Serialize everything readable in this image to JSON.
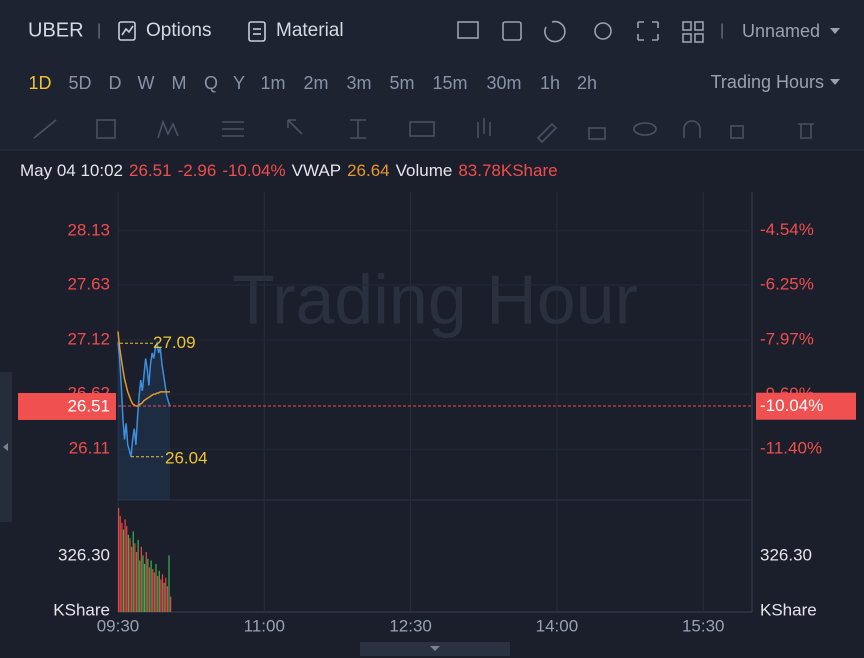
{
  "toolbar": {
    "symbol": "UBER",
    "separator": "|",
    "options": "Options",
    "material": "Material",
    "separator2": "|",
    "layout": "Unnamed"
  },
  "timeframes": [
    "1D",
    "5D",
    "D",
    "W",
    "M",
    "Q",
    "Y",
    "1m",
    "2m",
    "3m",
    "5m",
    "15m",
    "30m",
    "1h",
    "2h"
  ],
  "active_timeframe": "1D",
  "session": "Trading Hours",
  "info": {
    "time": "May 04 10:02",
    "price": "26.51",
    "change": "-2.96",
    "change_pct": "-10.04%",
    "vwap_label": "VWAP",
    "vwap": "26.64",
    "volume_label": "Volume",
    "volume": "83.78KShare"
  },
  "chart_data": {
    "type": "line",
    "watermark": "Trading Hour",
    "x": [
      "09:30",
      "09:31",
      "09:32",
      "09:33",
      "09:34",
      "09:35",
      "09:36",
      "09:37",
      "09:38",
      "09:39",
      "09:40",
      "09:41",
      "09:42",
      "09:43",
      "09:44",
      "09:45",
      "09:46",
      "09:47",
      "09:48",
      "09:49",
      "09:50",
      "09:51",
      "09:52",
      "09:53",
      "09:54",
      "09:55",
      "09:56",
      "09:57",
      "09:58",
      "09:59",
      "10:00",
      "10:01",
      "10:02"
    ],
    "xlim": [
      "09:30",
      "16:00"
    ],
    "xticks": [
      "09:30",
      "11:00",
      "12:30",
      "14:00",
      "15:30"
    ],
    "series": [
      {
        "color": "#3d8fe0",
        "values": [
          27.1,
          26.95,
          26.7,
          26.4,
          26.2,
          26.35,
          26.15,
          26.1,
          26.04,
          26.2,
          26.3,
          26.15,
          26.4,
          26.6,
          26.75,
          26.65,
          26.8,
          26.95,
          26.85,
          26.7,
          26.9,
          27.0,
          26.95,
          27.05,
          27.09,
          27.0,
          27.05,
          26.9,
          26.8,
          26.7,
          26.6,
          26.55,
          26.51
        ]
      },
      {
        "name": "VWAP",
        "color": "#e8962e",
        "values": [
          27.2,
          27.05,
          26.95,
          26.85,
          26.76,
          26.7,
          26.64,
          26.6,
          26.56,
          26.53,
          26.52,
          26.51,
          26.51,
          26.52,
          26.53,
          26.54,
          26.56,
          26.57,
          26.58,
          26.59,
          26.6,
          26.61,
          26.62,
          26.62,
          26.63,
          26.63,
          26.64,
          26.64,
          26.64,
          26.64,
          26.64,
          26.64,
          26.64
        ]
      }
    ],
    "ylim": [
      25.64,
      28.49
    ],
    "yticks": [
      28.13,
      27.63,
      27.12,
      26.62,
      26.11
    ],
    "y2lim": [
      -13.0,
      -3.33
    ],
    "y2ticks": [
      {
        "value": -4.54,
        "label": "-4.54%"
      },
      {
        "value": -6.25,
        "label": "-6.25%"
      },
      {
        "value": -7.97,
        "label": "-7.97%"
      },
      {
        "value": -9.69,
        "label": "-9.69%"
      },
      {
        "value": -11.4,
        "label": "-11.40%"
      }
    ],
    "last": {
      "value": 26.51,
      "pct": -10.04,
      "pct_label": "-10.04%"
    },
    "high": 27.09,
    "low": 26.04,
    "volume": {
      "values": [
        606,
        560,
        520,
        480,
        540,
        500,
        450,
        430,
        380,
        470,
        400,
        350,
        420,
        300,
        380,
        330,
        280,
        350,
        310,
        260,
        300,
        250,
        230,
        280,
        210,
        240,
        190,
        220,
        170,
        200,
        150,
        330,
        90
      ],
      "colors": [
        "#e84545",
        "#e84545",
        "#e84545",
        "#3fb24f",
        "#e84545",
        "#e84545",
        "#3fb24f",
        "#e84545",
        "#e84545",
        "#3fb24f",
        "#e84545",
        "#e84545",
        "#3fb24f",
        "#3fb24f",
        "#e84545",
        "#3fb24f",
        "#3fb24f",
        "#e84545",
        "#3fb24f",
        "#e84545",
        "#3fb24f",
        "#e84545",
        "#e84545",
        "#3fb24f",
        "#e84545",
        "#3fb24f",
        "#e84545",
        "#e84545",
        "#3fb24f",
        "#e84545",
        "#e84545",
        "#3fb24f",
        "#e84545"
      ],
      "ylim": [
        0,
        652.6
      ],
      "yticks": [
        {
          "value": 326.3,
          "label": "326.30"
        }
      ],
      "unit": "KShare"
    },
    "grid": true
  }
}
